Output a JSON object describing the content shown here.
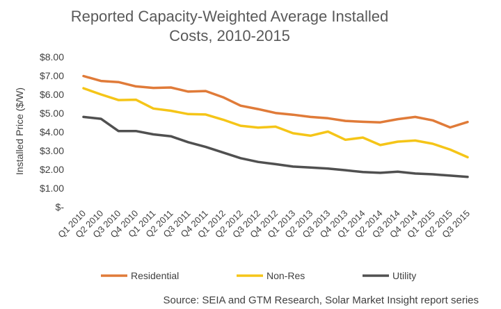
{
  "chart_data": {
    "type": "line",
    "title_lines": [
      "Reported Capacity-Weighted Average Installed",
      "Costs, 2010-2015"
    ],
    "ylabel": "Installed Price ($/W)",
    "ylim": [
      0,
      8
    ],
    "y_ticks": [
      0,
      1,
      2,
      3,
      4,
      5,
      6,
      7,
      8
    ],
    "y_tick_labels": [
      "$-",
      "$1.00",
      "$2.00",
      "$3.00",
      "$4.00",
      "$5.00",
      "$6.00",
      "$7.00",
      "$8.00"
    ],
    "grid": false,
    "legend_position": "bottom",
    "categories": [
      "Q1 2010",
      "Q2 2010",
      "Q3 2010",
      "Q4 2010",
      "Q1 2011",
      "Q2 2011",
      "Q3 2011",
      "Q4 2011",
      "Q1 2012",
      "Q2 2012",
      "Q3 2012",
      "Q4 2012",
      "Q1 2013",
      "Q2 2013",
      "Q3 2013",
      "Q4 2013",
      "Q1 2014",
      "Q2 2014",
      "Q3 2014",
      "Q4 2014",
      "Q1 2015",
      "Q2 2015",
      "Q3 2015"
    ],
    "series": [
      {
        "name": "Residential",
        "color": "#e07b39",
        "values": [
          6.98,
          6.72,
          6.66,
          6.43,
          6.35,
          6.37,
          6.15,
          6.18,
          5.85,
          5.4,
          5.22,
          5.01,
          4.92,
          4.8,
          4.73,
          4.59,
          4.54,
          4.51,
          4.68,
          4.8,
          4.62,
          4.24,
          4.53
        ]
      },
      {
        "name": "Non-Res",
        "color": "#f5c518",
        "values": [
          6.33,
          6.0,
          5.7,
          5.72,
          5.25,
          5.13,
          4.95,
          4.93,
          4.65,
          4.33,
          4.23,
          4.28,
          3.93,
          3.8,
          4.02,
          3.58,
          3.7,
          3.3,
          3.48,
          3.54,
          3.37,
          3.06,
          2.65
        ]
      },
      {
        "name": "Utility",
        "color": "#505050",
        "values": [
          4.8,
          4.7,
          4.05,
          4.05,
          3.87,
          3.77,
          3.45,
          3.2,
          2.9,
          2.6,
          2.4,
          2.28,
          2.15,
          2.1,
          2.05,
          1.96,
          1.86,
          1.82,
          1.88,
          1.78,
          1.74,
          1.67,
          1.6
        ]
      }
    ],
    "source": "Source: SEIA and GTM Research, Solar Market Insight report series"
  }
}
